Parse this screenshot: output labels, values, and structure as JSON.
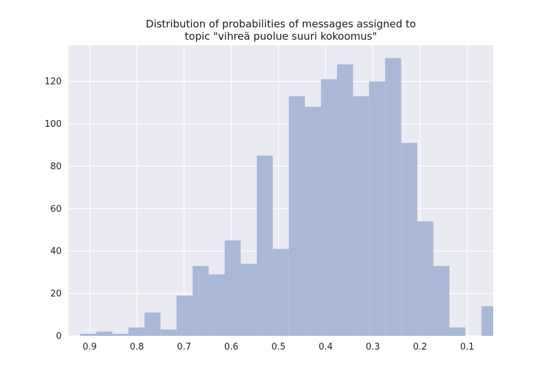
{
  "chart_data": {
    "type": "bar",
    "title_lines": [
      "Distribution of probabilities of messages assigned to",
      "topic \"vihreä puolue suuri kokoomus\""
    ],
    "xlabel": "",
    "ylabel": "",
    "x_reversed": true,
    "xlim": [
      0.945,
      0.045
    ],
    "ylim": [
      0,
      137
    ],
    "xticks": [
      0.9,
      0.8,
      0.7,
      0.6,
      0.5,
      0.4,
      0.3,
      0.2,
      0.1
    ],
    "xtick_labels": [
      "0.9",
      "0.8",
      "0.7",
      "0.6",
      "0.5",
      "0.4",
      "0.3",
      "0.2",
      "0.1"
    ],
    "yticks": [
      0,
      20,
      40,
      60,
      80,
      100,
      120
    ],
    "ytick_labels": [
      "0",
      "20",
      "40",
      "60",
      "80",
      "100",
      "120"
    ],
    "bin_width": 0.034,
    "bins": [
      {
        "start": 0.92,
        "count": 1
      },
      {
        "start": 0.886,
        "count": 2
      },
      {
        "start": 0.852,
        "count": 1
      },
      {
        "start": 0.818,
        "count": 4
      },
      {
        "start": 0.784,
        "count": 11
      },
      {
        "start": 0.75,
        "count": 3
      },
      {
        "start": 0.716,
        "count": 19
      },
      {
        "start": 0.682,
        "count": 33
      },
      {
        "start": 0.648,
        "count": 29
      },
      {
        "start": 0.614,
        "count": 45
      },
      {
        "start": 0.58,
        "count": 34
      },
      {
        "start": 0.546,
        "count": 85
      },
      {
        "start": 0.512,
        "count": 41
      },
      {
        "start": 0.478,
        "count": 113
      },
      {
        "start": 0.444,
        "count": 108
      },
      {
        "start": 0.41,
        "count": 121
      },
      {
        "start": 0.376,
        "count": 128
      },
      {
        "start": 0.342,
        "count": 113
      },
      {
        "start": 0.308,
        "count": 120
      },
      {
        "start": 0.274,
        "count": 131
      },
      {
        "start": 0.24,
        "count": 91
      },
      {
        "start": 0.206,
        "count": 54
      },
      {
        "start": 0.172,
        "count": 33
      },
      {
        "start": 0.138,
        "count": 4
      },
      {
        "start": 0.104,
        "count": 0
      },
      {
        "start": 0.07,
        "count": 14
      }
    ],
    "bar_color": "#a9b8d6",
    "background_color": "#eaeaf2",
    "grid_color": "#ffffff",
    "grid": true,
    "legend": false
  }
}
